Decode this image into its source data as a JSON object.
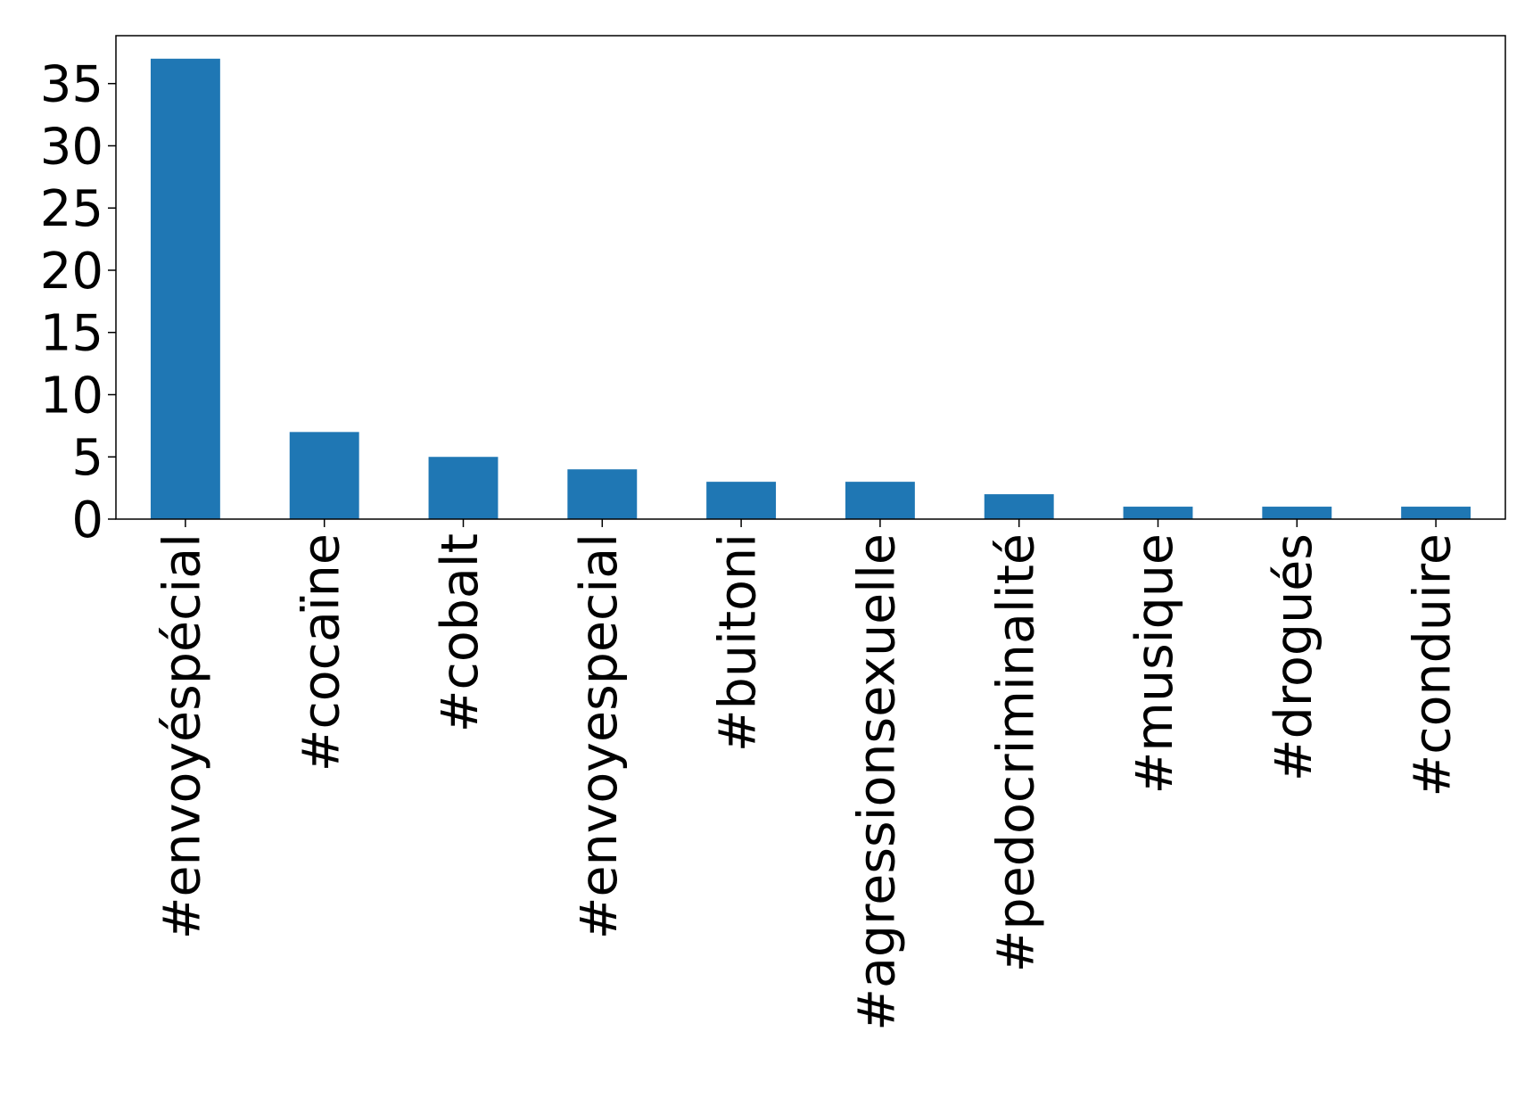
{
  "chart_data": {
    "type": "bar",
    "title": "",
    "xlabel": "",
    "ylabel": "",
    "categories": [
      "#envoyéspécial",
      "#cocaïne",
      "#cobalt",
      "#envoyespecial",
      "#buitoni",
      "#agressionsexuelle",
      "#pedocriminalité",
      "#musique",
      "#drogués",
      "#conduire"
    ],
    "values": [
      37,
      7,
      5,
      4,
      3,
      3,
      2,
      1,
      1,
      1
    ],
    "ylim": [
      0,
      38.85
    ],
    "yticks": [
      0,
      5,
      10,
      15,
      20,
      25,
      30,
      35
    ],
    "grid": false,
    "legend": "none",
    "colors": {
      "bar": "#1f77b4",
      "axis": "#000000",
      "text": "#000000"
    }
  }
}
